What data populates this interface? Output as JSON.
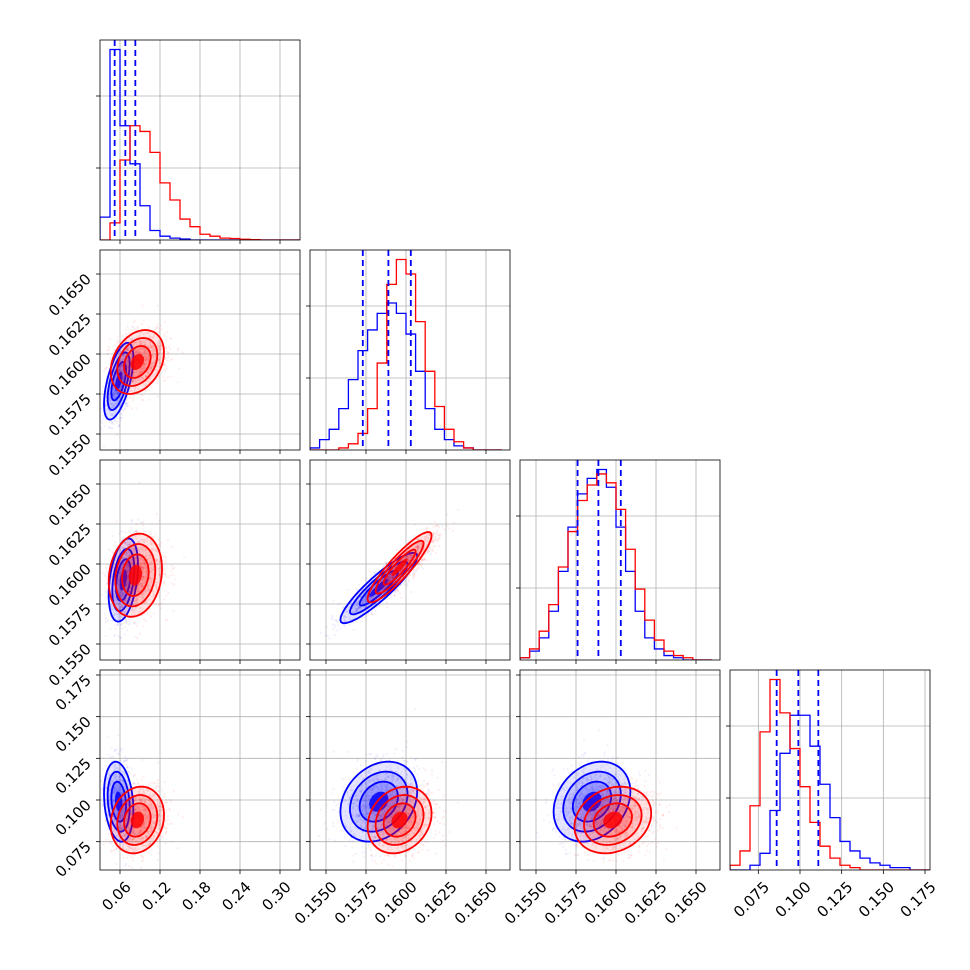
{
  "chart_data": {
    "type": "corner",
    "colors": {
      "blue": "#0000ff",
      "red": "#ff0000",
      "grid": "#b0b0b0"
    },
    "grid": true,
    "parameters": [
      {
        "range": [
          0.03,
          0.33
        ],
        "ticks": [
          0.06,
          0.12,
          0.18,
          0.24,
          0.3
        ],
        "tick_labels": [
          "0.06",
          "0.12",
          "0.18",
          "0.24",
          "0.30"
        ]
      },
      {
        "range": [
          0.154,
          0.1665
        ],
        "ticks": [
          0.155,
          0.1575,
          0.16,
          0.1625,
          0.165
        ],
        "tick_labels": [
          "0.1550",
          "0.1575",
          "0.1600",
          "0.1625",
          "0.1650"
        ]
      },
      {
        "range": [
          0.154,
          0.1665
        ],
        "ticks": [
          0.155,
          0.1575,
          0.16,
          0.1625,
          0.165
        ],
        "tick_labels": [
          "0.1550",
          "0.1575",
          "0.1600",
          "0.1625",
          "0.1650"
        ]
      },
      {
        "range": [
          0.058,
          0.178
        ],
        "ticks": [
          0.075,
          0.1,
          0.125,
          0.15,
          0.175
        ],
        "tick_labels": [
          "0.075",
          "0.100",
          "0.125",
          "0.150",
          "0.175"
        ]
      }
    ],
    "diagonal": [
      {
        "dim": 0,
        "bin_edges": [
          0.03,
          0.045,
          0.06,
          0.075,
          0.09,
          0.105,
          0.12,
          0.135,
          0.15,
          0.165,
          0.18,
          0.195,
          0.21,
          0.225,
          0.24,
          0.255,
          0.27,
          0.285,
          0.3,
          0.315,
          0.33
        ],
        "blue_counts": [
          0.12,
          1.0,
          0.6,
          0.4,
          0.18,
          0.05,
          0.02,
          0.01,
          0.005,
          0,
          0,
          0,
          0,
          0,
          0,
          0,
          0,
          0,
          0,
          0
        ],
        "red_counts": [
          0.0,
          0.09,
          0.42,
          0.6,
          0.57,
          0.46,
          0.3,
          0.21,
          0.11,
          0.07,
          0.03,
          0.02,
          0.01,
          0.008,
          0.004,
          0.002,
          0,
          0,
          0,
          0
        ],
        "quantile_lines": [
          0.052,
          0.068,
          0.083
        ]
      },
      {
        "dim": 1,
        "bin_edges": [
          0.154,
          0.1546,
          0.1552,
          0.1558,
          0.1564,
          0.157,
          0.1576,
          0.1582,
          0.1588,
          0.1594,
          0.16,
          0.1606,
          0.1612,
          0.1618,
          0.1624,
          0.163,
          0.1636,
          0.1642,
          0.1648,
          0.1654,
          0.166
        ],
        "blue_counts": [
          0.01,
          0.05,
          0.1,
          0.2,
          0.34,
          0.48,
          0.58,
          0.66,
          0.71,
          0.66,
          0.56,
          0.38,
          0.2,
          0.1,
          0.05,
          0.02,
          0.01,
          0,
          0,
          0
        ],
        "red_counts": [
          0,
          0,
          0,
          0.01,
          0.03,
          0.08,
          0.2,
          0.42,
          0.8,
          0.92,
          0.85,
          0.62,
          0.38,
          0.21,
          0.1,
          0.04,
          0.01,
          0,
          0,
          0
        ],
        "quantile_lines": [
          0.1573,
          0.1589,
          0.1603
        ]
      },
      {
        "dim": 2,
        "bin_edges": [
          0.154,
          0.1546,
          0.1552,
          0.1558,
          0.1564,
          0.157,
          0.1576,
          0.1582,
          0.1588,
          0.1594,
          0.16,
          0.1606,
          0.1612,
          0.1618,
          0.1624,
          0.163,
          0.1636,
          0.1642,
          0.1648,
          0.1654,
          0.166
        ],
        "blue_counts": [
          0.01,
          0.04,
          0.1,
          0.22,
          0.4,
          0.6,
          0.75,
          0.82,
          0.86,
          0.78,
          0.6,
          0.4,
          0.22,
          0.1,
          0.05,
          0.02,
          0.01,
          0,
          0,
          0
        ],
        "red_counts": [
          0.01,
          0.05,
          0.13,
          0.25,
          0.42,
          0.58,
          0.72,
          0.79,
          0.84,
          0.8,
          0.68,
          0.5,
          0.32,
          0.18,
          0.09,
          0.04,
          0.02,
          0.01,
          0,
          0
        ],
        "quantile_lines": [
          0.1576,
          0.1589,
          0.1603
        ]
      },
      {
        "dim": 3,
        "bin_edges": [
          0.058,
          0.064,
          0.07,
          0.076,
          0.082,
          0.088,
          0.094,
          0.1,
          0.106,
          0.112,
          0.118,
          0.124,
          0.13,
          0.136,
          0.142,
          0.148,
          0.154,
          0.16,
          0.166,
          0.172,
          0.178
        ],
        "blue_counts": [
          0,
          0,
          0.02,
          0.07,
          0.25,
          0.49,
          0.65,
          0.65,
          0.52,
          0.36,
          0.22,
          0.12,
          0.08,
          0.05,
          0.03,
          0.02,
          0.01,
          0.01,
          0,
          0
        ],
        "red_counts": [
          0.02,
          0.08,
          0.27,
          0.58,
          0.8,
          0.66,
          0.51,
          0.35,
          0.2,
          0.1,
          0.05,
          0.02,
          0.01,
          0,
          0,
          0,
          0,
          0,
          0,
          0
        ],
        "quantile_lines": [
          0.086,
          0.099,
          0.111
        ]
      }
    ],
    "offdiagonal": [
      {
        "x_dim": 0,
        "y_dim": 1,
        "blue": {
          "mean": [
            0.058,
            0.1583
          ],
          "sd": [
            0.011,
            0.0012
          ],
          "corr": 0.6
        },
        "red": {
          "mean": [
            0.086,
            0.1595
          ],
          "sd": [
            0.02,
            0.001
          ],
          "corr": 0.3
        }
      },
      {
        "x_dim": 0,
        "y_dim": 2,
        "blue": {
          "mean": [
            0.065,
            0.159
          ],
          "sd": [
            0.011,
            0.0013
          ],
          "corr": 0.35
        },
        "red": {
          "mean": [
            0.083,
            0.1593
          ],
          "sd": [
            0.02,
            0.0013
          ],
          "corr": 0.15
        }
      },
      {
        "x_dim": 1,
        "y_dim": 2,
        "blue": {
          "mean": [
            0.1583,
            0.1585
          ],
          "sd": [
            0.0012,
            0.0011
          ],
          "corr": 0.9
        },
        "red": {
          "mean": [
            0.1596,
            0.1598
          ],
          "sd": [
            0.001,
            0.0011
          ],
          "corr": 0.9
        }
      },
      {
        "x_dim": 0,
        "y_dim": 3,
        "blue": {
          "mean": [
            0.058,
            0.099
          ],
          "sd": [
            0.011,
            0.012
          ],
          "corr": -0.2
        },
        "red": {
          "mean": [
            0.086,
            0.088
          ],
          "sd": [
            0.02,
            0.01
          ],
          "corr": 0.15
        }
      },
      {
        "x_dim": 1,
        "y_dim": 3,
        "blue": {
          "mean": [
            0.1583,
            0.099
          ],
          "sd": [
            0.0012,
            0.012
          ],
          "corr": 0.25
        },
        "red": {
          "mean": [
            0.1596,
            0.088
          ],
          "sd": [
            0.001,
            0.01
          ],
          "corr": 0.2
        }
      },
      {
        "x_dim": 2,
        "y_dim": 3,
        "blue": {
          "mean": [
            0.1585,
            0.099
          ],
          "sd": [
            0.0012,
            0.012
          ],
          "corr": 0.25
        },
        "red": {
          "mean": [
            0.1598,
            0.088
          ],
          "sd": [
            0.0012,
            0.01
          ],
          "corr": 0.2
        }
      }
    ],
    "contour_levels_sigma": [
      0.5,
      1.0,
      1.5,
      2.0
    ]
  }
}
